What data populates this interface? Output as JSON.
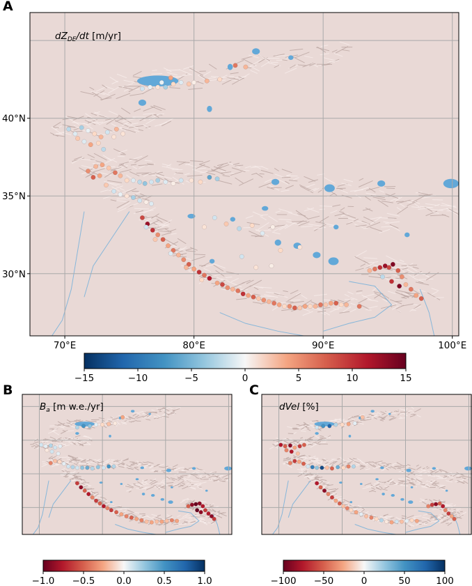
{
  "panels": {
    "A": {
      "letter": "A",
      "title_var": "dZ",
      "title_sub": "DE",
      "title_rest": "/dt",
      "title_unit": " [m/yr]"
    },
    "B": {
      "letter": "B",
      "title_var": "B",
      "title_sub": "a",
      "title_unit": " [m w.e./yr]"
    },
    "C": {
      "letter": "C",
      "title_var": "dVel",
      "title_unit": " [%]"
    }
  },
  "chart_data": [
    {
      "id": "A",
      "type": "scatter",
      "title": "dZDE/dt [m/yr]",
      "xlabel": "",
      "ylabel": "",
      "xlim": [
        67.3,
        100.5
      ],
      "ylim": [
        26,
        46.8
      ],
      "x_ticks": [
        "70°E",
        "80°E",
        "90°E",
        "100°E"
      ],
      "x_tick_values": [
        70,
        80,
        90,
        100
      ],
      "y_ticks": [
        "30°N",
        "35°N",
        "40°N"
      ],
      "y_tick_values": [
        30,
        35,
        40
      ],
      "grid": true,
      "colorbar": {
        "cmap": "RdBu_r",
        "ticks": [
          "-15",
          "-10",
          "-5",
          "0",
          "5",
          "10",
          "15"
        ],
        "range": [
          -15,
          15
        ]
      },
      "points": [
        [
          76.0,
          41.9,
          -3
        ],
        [
          76.6,
          42.0,
          -1
        ],
        [
          77.2,
          42.0,
          2
        ],
        [
          77.8,
          42.0,
          -5
        ],
        [
          78.4,
          42.2,
          3
        ],
        [
          79.0,
          42.3,
          -2
        ],
        [
          79.6,
          42.2,
          4
        ],
        [
          80.0,
          42.3,
          1
        ],
        [
          81.0,
          42.4,
          5
        ],
        [
          82.0,
          42.5,
          3
        ],
        [
          83.2,
          43.4,
          8
        ],
        [
          84.0,
          43.3,
          5
        ],
        [
          78.2,
          42.6,
          6
        ],
        [
          77.5,
          42.3,
          -1
        ],
        [
          70.3,
          39.3,
          -4
        ],
        [
          70.8,
          39.0,
          -2
        ],
        [
          71.3,
          39.4,
          -5
        ],
        [
          71.8,
          39.2,
          -1
        ],
        [
          72.3,
          39.0,
          3
        ],
        [
          72.8,
          38.8,
          5
        ],
        [
          73.3,
          39.1,
          -3
        ],
        [
          73.8,
          38.8,
          2
        ],
        [
          71.0,
          38.7,
          4
        ],
        [
          71.5,
          38.5,
          -2
        ],
        [
          72.0,
          38.3,
          6
        ],
        [
          72.6,
          38.4,
          3
        ],
        [
          73.0,
          38.0,
          -4
        ],
        [
          74.0,
          39.3,
          5
        ],
        [
          74.5,
          39.0,
          2
        ],
        [
          71.8,
          36.6,
          7
        ],
        [
          72.4,
          36.9,
          5
        ],
        [
          72.9,
          37.0,
          6
        ],
        [
          73.4,
          36.8,
          4
        ],
        [
          73.9,
          36.5,
          8
        ],
        [
          74.3,
          36.3,
          5
        ],
        [
          74.8,
          36.0,
          3
        ],
        [
          75.3,
          36.0,
          -2
        ],
        [
          75.8,
          35.9,
          -4
        ],
        [
          76.2,
          35.8,
          -6
        ],
        [
          76.7,
          35.9,
          -3
        ],
        [
          77.2,
          36.0,
          -5
        ],
        [
          77.8,
          35.9,
          -2
        ],
        [
          78.4,
          35.8,
          1
        ],
        [
          79.0,
          36.0,
          -3
        ],
        [
          79.8,
          36.0,
          2
        ],
        [
          80.5,
          35.9,
          3
        ],
        [
          81.2,
          36.2,
          -8
        ],
        [
          81.8,
          36.1,
          -5
        ],
        [
          73.8,
          35.3,
          -3
        ],
        [
          74.3,
          35.1,
          -1
        ],
        [
          74.8,
          35.0,
          2
        ],
        [
          75.3,
          34.9,
          -5
        ],
        [
          75.8,
          34.7,
          -3
        ],
        [
          76.3,
          34.6,
          1
        ],
        [
          76.7,
          34.5,
          -2
        ],
        [
          72.2,
          36.2,
          9
        ],
        [
          72.7,
          36.3,
          6
        ],
        [
          73.2,
          35.7,
          4
        ],
        [
          76.0,
          33.6,
          10
        ],
        [
          76.4,
          33.2,
          13
        ],
        [
          76.8,
          32.8,
          11
        ],
        [
          77.2,
          32.5,
          7
        ],
        [
          77.6,
          32.2,
          9
        ],
        [
          78.0,
          31.8,
          6
        ],
        [
          78.4,
          31.5,
          8
        ],
        [
          78.8,
          31.2,
          5
        ],
        [
          79.2,
          30.9,
          7
        ],
        [
          79.6,
          30.6,
          9
        ],
        [
          80.0,
          30.3,
          6
        ],
        [
          80.4,
          30.1,
          11
        ],
        [
          80.8,
          29.9,
          8
        ],
        [
          81.2,
          29.7,
          12
        ],
        [
          76.3,
          33.0,
          -3
        ],
        [
          77.0,
          32.2,
          4
        ],
        [
          78.2,
          31.3,
          -2
        ],
        [
          79.4,
          30.4,
          5
        ],
        [
          80.6,
          29.6,
          3
        ],
        [
          81.8,
          29.4,
          6
        ],
        [
          82.2,
          29.3,
          10
        ],
        [
          82.6,
          29.1,
          7
        ],
        [
          83.0,
          29.0,
          5
        ],
        [
          83.4,
          28.9,
          8
        ],
        [
          83.8,
          28.7,
          11
        ],
        [
          84.2,
          28.6,
          6
        ],
        [
          84.6,
          28.5,
          9
        ],
        [
          85.0,
          28.4,
          4
        ],
        [
          85.4,
          28.3,
          7
        ],
        [
          85.8,
          28.2,
          5
        ],
        [
          86.2,
          28.1,
          8
        ],
        [
          86.6,
          28.0,
          6
        ],
        [
          87.0,
          27.9,
          3
        ],
        [
          87.4,
          27.9,
          7
        ],
        [
          87.8,
          27.8,
          9
        ],
        [
          88.2,
          27.8,
          4
        ],
        [
          88.6,
          27.9,
          6
        ],
        [
          89.0,
          27.9,
          3
        ],
        [
          89.4,
          27.9,
          5
        ],
        [
          89.8,
          28.0,
          8
        ],
        [
          90.2,
          28.0,
          4
        ],
        [
          90.6,
          28.1,
          6
        ],
        [
          91.0,
          28.1,
          9
        ],
        [
          91.4,
          28.0,
          3
        ],
        [
          91.8,
          28.0,
          5
        ],
        [
          92.8,
          27.9,
          8
        ],
        [
          80.8,
          33.0,
          2
        ],
        [
          81.6,
          33.6,
          -3
        ],
        [
          82.5,
          33.2,
          4
        ],
        [
          83.5,
          32.9,
          -4
        ],
        [
          84.5,
          33.1,
          3
        ],
        [
          85.3,
          32.6,
          -2
        ],
        [
          86.1,
          33.0,
          1
        ],
        [
          86.7,
          31.5,
          3
        ],
        [
          84.8,
          30.4,
          2
        ],
        [
          83.7,
          31.1,
          -3
        ],
        [
          88.2,
          31.7,
          2
        ],
        [
          86.0,
          30.5,
          1
        ],
        [
          93.6,
          30.2,
          5
        ],
        [
          94.0,
          30.3,
          8
        ],
        [
          94.4,
          30.4,
          11
        ],
        [
          94.8,
          30.5,
          13
        ],
        [
          95.1,
          30.4,
          10
        ],
        [
          95.4,
          30.6,
          14
        ],
        [
          95.8,
          30.2,
          9
        ],
        [
          96.1,
          29.8,
          7
        ],
        [
          96.4,
          29.3,
          5
        ],
        [
          96.8,
          29.0,
          8
        ],
        [
          97.2,
          28.6,
          6
        ],
        [
          97.6,
          28.4,
          9
        ],
        [
          94.6,
          29.8,
          -4
        ],
        [
          95.3,
          29.5,
          11
        ],
        [
          95.9,
          29.2,
          14
        ]
      ]
    },
    {
      "id": "B",
      "type": "scatter",
      "title": "Ba [m w.e./yr]",
      "xlabel": "",
      "ylabel": "",
      "xlim": [
        67.3,
        100.5
      ],
      "ylim": [
        26,
        46.8
      ],
      "grid": true,
      "colorbar": {
        "cmap": "RdBu",
        "ticks": [
          "-1.0",
          "-0.5",
          "0.0",
          "0.5",
          "1.0"
        ],
        "range": [
          -1.0,
          1.0
        ]
      },
      "points": [
        [
          76.0,
          41.9,
          0.3
        ],
        [
          77.0,
          42.1,
          0.6
        ],
        [
          78.0,
          42.1,
          0.4
        ],
        [
          79.0,
          42.3,
          0.1
        ],
        [
          80.0,
          42.3,
          -0.2
        ],
        [
          81.0,
          42.4,
          -0.3
        ],
        [
          82.0,
          42.5,
          -0.1
        ],
        [
          83.2,
          43.4,
          -0.4
        ],
        [
          70.3,
          39.3,
          0.2
        ],
        [
          71.0,
          39.1,
          0.1
        ],
        [
          71.8,
          39.2,
          0.3
        ],
        [
          72.5,
          38.9,
          0.2
        ],
        [
          73.3,
          39.1,
          0.1
        ],
        [
          71.2,
          38.5,
          -0.1
        ],
        [
          72.0,
          38.3,
          0.2
        ],
        [
          73.0,
          38.0,
          0.1
        ],
        [
          71.8,
          36.6,
          -0.5
        ],
        [
          72.5,
          36.9,
          -0.3
        ],
        [
          73.2,
          36.8,
          -0.2
        ],
        [
          73.9,
          36.5,
          0.1
        ],
        [
          74.6,
          36.1,
          0.2
        ],
        [
          75.3,
          36.0,
          0.3
        ],
        [
          76.0,
          35.9,
          0.2
        ],
        [
          76.8,
          35.9,
          0.4
        ],
        [
          77.6,
          35.9,
          0.5
        ],
        [
          78.4,
          35.8,
          0.3
        ],
        [
          79.3,
          36.0,
          0.4
        ],
        [
          80.2,
          35.9,
          0.2
        ],
        [
          81.0,
          36.1,
          0.6
        ],
        [
          81.8,
          36.1,
          0.3
        ],
        [
          76.0,
          33.6,
          -0.7
        ],
        [
          76.6,
          33.0,
          -0.9
        ],
        [
          77.2,
          32.5,
          -0.6
        ],
        [
          77.8,
          32.0,
          -0.8
        ],
        [
          78.4,
          31.5,
          -0.5
        ],
        [
          79.0,
          31.0,
          -0.7
        ],
        [
          79.6,
          30.6,
          -0.6
        ],
        [
          80.2,
          30.2,
          -0.8
        ],
        [
          80.8,
          29.9,
          -0.5
        ],
        [
          81.4,
          29.6,
          -0.7
        ],
        [
          82.2,
          29.3,
          -0.6
        ],
        [
          83.0,
          29.0,
          -0.4
        ],
        [
          83.8,
          28.7,
          -0.5
        ],
        [
          84.6,
          28.5,
          -0.6
        ],
        [
          85.4,
          28.3,
          -0.4
        ],
        [
          86.2,
          28.1,
          -0.5
        ],
        [
          87.0,
          27.9,
          -0.3
        ],
        [
          87.8,
          27.8,
          -0.4
        ],
        [
          88.6,
          27.9,
          -0.3
        ],
        [
          89.4,
          27.9,
          -0.4
        ],
        [
          90.2,
          28.0,
          -0.3
        ],
        [
          91.0,
          28.1,
          -0.5
        ],
        [
          91.8,
          28.0,
          -0.4
        ],
        [
          93.6,
          30.2,
          -0.6
        ],
        [
          94.2,
          30.4,
          -0.9
        ],
        [
          94.8,
          30.5,
          -1.0
        ],
        [
          95.4,
          30.6,
          -0.9
        ],
        [
          95.9,
          30.2,
          -0.8
        ],
        [
          96.3,
          29.6,
          -0.7
        ],
        [
          96.8,
          29.1,
          -0.8
        ],
        [
          97.3,
          28.7,
          -0.9
        ],
        [
          97.7,
          28.3,
          -0.7
        ],
        [
          95.0,
          29.6,
          -1.0
        ],
        [
          95.6,
          29.3,
          -0.9
        ]
      ]
    },
    {
      "id": "C",
      "type": "scatter",
      "title": "dVel [%]",
      "xlabel": "",
      "ylabel": "",
      "xlim": [
        67.3,
        100.5
      ],
      "ylim": [
        26,
        46.8
      ],
      "grid": true,
      "colorbar": {
        "cmap": "RdBu",
        "ticks": [
          "-100",
          "-50",
          "0",
          "50",
          "100"
        ],
        "range": [
          -100,
          100
        ]
      },
      "points": [
        [
          76.0,
          41.9,
          20
        ],
        [
          77.0,
          42.1,
          60
        ],
        [
          78.0,
          42.1,
          80
        ],
        [
          79.0,
          42.3,
          30
        ],
        [
          80.0,
          42.3,
          -20
        ],
        [
          81.0,
          42.4,
          -40
        ],
        [
          82.0,
          42.5,
          10
        ],
        [
          83.2,
          43.4,
          -30
        ],
        [
          70.3,
          39.3,
          -80
        ],
        [
          71.0,
          39.1,
          -60
        ],
        [
          71.8,
          39.2,
          -90
        ],
        [
          72.5,
          38.9,
          -40
        ],
        [
          73.3,
          39.1,
          -70
        ],
        [
          71.2,
          38.5,
          -50
        ],
        [
          72.0,
          38.3,
          -80
        ],
        [
          73.0,
          38.0,
          -30
        ],
        [
          74.0,
          39.3,
          -60
        ],
        [
          71.8,
          36.6,
          -50
        ],
        [
          72.5,
          36.9,
          -70
        ],
        [
          73.2,
          36.8,
          -40
        ],
        [
          73.9,
          36.5,
          -60
        ],
        [
          74.6,
          36.1,
          20
        ],
        [
          75.3,
          36.0,
          70
        ],
        [
          76.0,
          35.9,
          40
        ],
        [
          76.8,
          35.9,
          90
        ],
        [
          77.6,
          35.9,
          -30
        ],
        [
          78.4,
          35.8,
          -60
        ],
        [
          79.3,
          36.0,
          50
        ],
        [
          80.2,
          35.9,
          -20
        ],
        [
          81.0,
          36.1,
          -50
        ],
        [
          81.8,
          36.1,
          30
        ],
        [
          76.0,
          33.6,
          -80
        ],
        [
          76.6,
          33.0,
          -60
        ],
        [
          77.2,
          32.5,
          -90
        ],
        [
          77.8,
          32.0,
          -50
        ],
        [
          78.4,
          31.5,
          -70
        ],
        [
          79.0,
          31.0,
          -40
        ],
        [
          79.6,
          30.6,
          -60
        ],
        [
          80.2,
          30.2,
          -30
        ],
        [
          80.8,
          29.9,
          -50
        ],
        [
          81.4,
          29.6,
          -20
        ],
        [
          82.2,
          29.3,
          -40
        ],
        [
          83.0,
          29.0,
          10
        ],
        [
          83.8,
          28.7,
          -30
        ],
        [
          84.6,
          28.5,
          -50
        ],
        [
          85.4,
          28.3,
          -20
        ],
        [
          86.2,
          28.1,
          30
        ],
        [
          87.0,
          27.9,
          -10
        ],
        [
          87.8,
          27.8,
          -40
        ],
        [
          88.6,
          27.9,
          20
        ],
        [
          89.4,
          27.9,
          -30
        ],
        [
          90.2,
          28.0,
          10
        ],
        [
          91.0,
          28.1,
          -20
        ],
        [
          91.8,
          28.0,
          -40
        ],
        [
          93.6,
          30.2,
          -50
        ],
        [
          94.2,
          30.4,
          -70
        ],
        [
          94.8,
          30.5,
          -90
        ],
        [
          95.4,
          30.6,
          -60
        ],
        [
          95.9,
          30.2,
          -80
        ],
        [
          96.3,
          29.6,
          -50
        ],
        [
          96.8,
          29.1,
          -70
        ],
        [
          97.3,
          28.7,
          -40
        ],
        [
          97.7,
          28.3,
          -60
        ]
      ]
    }
  ],
  "colors": {
    "map_background": "#e9d9d6",
    "map_relief_dark": "#c9b6b2",
    "lakes_rivers": "#62a8d8",
    "grid_lines": "#a9a9a9"
  }
}
